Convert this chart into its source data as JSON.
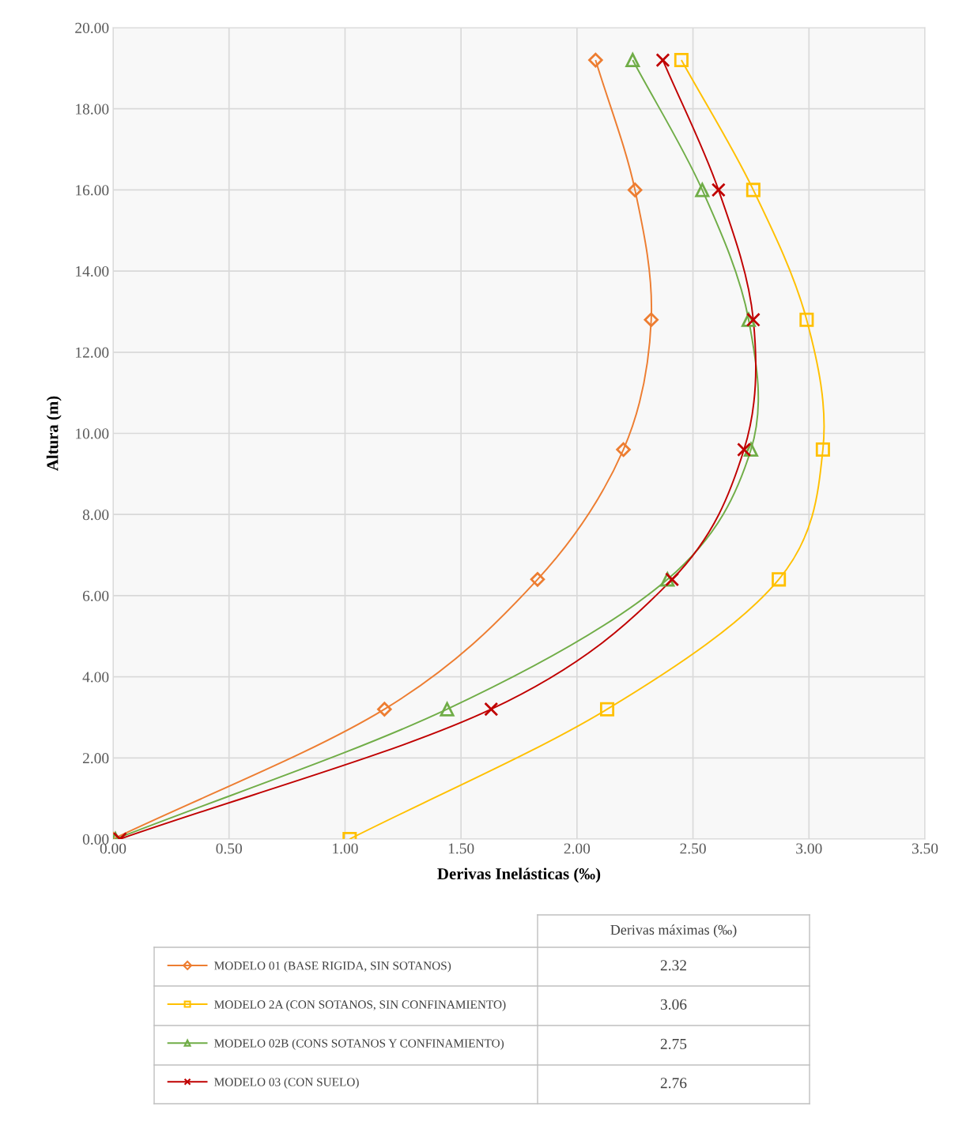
{
  "chart_data": {
    "type": "line",
    "xlabel": "Derivas Inelásticas (‰)",
    "ylabel": "Altura (m)",
    "xlim": [
      0,
      3.5
    ],
    "ylim": [
      0,
      20
    ],
    "xticks": [
      {
        "value": 0,
        "label": "0.00"
      },
      {
        "value": 0.5,
        "label": "0.50"
      },
      {
        "value": 1,
        "label": "1.00"
      },
      {
        "value": 1.5,
        "label": "1.50"
      },
      {
        "value": 2,
        "label": "2.00"
      },
      {
        "value": 2.5,
        "label": "2.50"
      },
      {
        "value": 3,
        "label": "3.00"
      },
      {
        "value": 3.5,
        "label": "3.50"
      }
    ],
    "yticks": [
      {
        "value": 0,
        "label": "0.00"
      },
      {
        "value": 2,
        "label": "2.00"
      },
      {
        "value": 4,
        "label": "4.00"
      },
      {
        "value": 6,
        "label": "6.00"
      },
      {
        "value": 8,
        "label": "8.00"
      },
      {
        "value": 10,
        "label": "10.00"
      },
      {
        "value": 12,
        "label": "12.00"
      },
      {
        "value": 14,
        "label": "14.00"
      },
      {
        "value": 16,
        "label": "16.00"
      },
      {
        "value": 18,
        "label": "18.00"
      },
      {
        "value": 20,
        "label": "20.00"
      }
    ],
    "grid": true,
    "legend": "bottom",
    "series": [
      {
        "name": "MODELO 01 (BASE RIGIDA, SIN SOTANOS)",
        "color": "#ed7d31",
        "marker": "diamond",
        "x": [
          0.0,
          1.17,
          1.83,
          2.2,
          2.32,
          2.25,
          2.08
        ],
        "values": [
          0,
          3.2,
          6.4,
          9.6,
          12.8,
          16.0,
          19.2
        ]
      },
      {
        "name": "MODELO 2A (CON SOTANOS, SIN CONFINAMIENTO)",
        "color": "#ffc000",
        "marker": "square",
        "x": [
          1.02,
          2.13,
          2.87,
          3.06,
          2.99,
          2.76,
          2.45
        ],
        "values": [
          0,
          3.2,
          6.4,
          9.6,
          12.8,
          16.0,
          19.2
        ]
      },
      {
        "name": "MODELO 02B (CONS SOTANOS Y CONFINAMIENTO)",
        "color": "#70ad47",
        "marker": "triangle",
        "x": [
          0.01,
          1.44,
          2.39,
          2.75,
          2.74,
          2.54,
          2.24
        ],
        "values": [
          0,
          3.2,
          6.4,
          9.6,
          12.8,
          16.0,
          19.2
        ]
      },
      {
        "name": "MODELO 03 (CON SUELO)",
        "color": "#c00000",
        "marker": "cross",
        "x": [
          0.03,
          1.63,
          2.41,
          2.72,
          2.76,
          2.61,
          2.37
        ],
        "values": [
          0,
          3.2,
          6.4,
          9.6,
          12.8,
          16.0,
          19.2
        ]
      }
    ],
    "annotations": [
      "Derivas máximas (‰)",
      "2.32",
      "3.06",
      "2.75",
      "2.76"
    ]
  }
}
